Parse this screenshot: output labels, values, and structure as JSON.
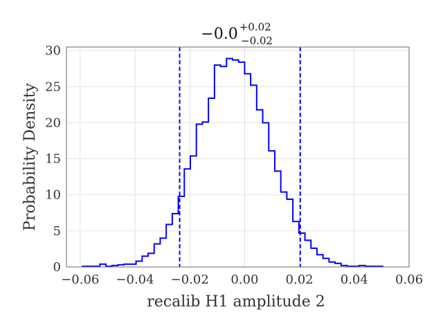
{
  "chart_data": {
    "type": "histogram",
    "title": {
      "main": "−0.0",
      "superscript": "+0.02",
      "subscript": "−0.02"
    },
    "xlabel": "recalib H1 amplitude 2",
    "ylabel": "Probability Density",
    "xlim": [
      -0.065,
      0.06
    ],
    "ylim": [
      0,
      30.5
    ],
    "xticks": [
      -0.06,
      -0.04,
      -0.02,
      0.0,
      0.02,
      0.04,
      0.06
    ],
    "xtick_labels": [
      "−0.06",
      "−0.04",
      "−0.02",
      "0.00",
      "0.02",
      "0.04",
      "0.06"
    ],
    "yticks": [
      0,
      5,
      10,
      15,
      20,
      25,
      30
    ],
    "ytick_labels": [
      "0",
      "5",
      "10",
      "15",
      "20",
      "25",
      "30"
    ],
    "grid": true,
    "series": [
      {
        "name": "recalib H1 amplitude 2",
        "color": "#0000ff",
        "bin_start": -0.0594,
        "bin_width": 0.0022,
        "values": [
          0.1,
          0.1,
          0.1,
          0.4,
          0.1,
          0.2,
          0.3,
          0.4,
          0.4,
          0.8,
          1.5,
          1.9,
          3.2,
          4.0,
          5.9,
          7.4,
          9.8,
          13.6,
          15.4,
          19.8,
          20.1,
          23.4,
          28.0,
          27.8,
          28.9,
          28.7,
          28.4,
          26.8,
          25.2,
          21.8,
          20.0,
          16.1,
          13.3,
          10.4,
          9.4,
          6.3,
          4.7,
          3.7,
          2.6,
          1.7,
          1.2,
          0.7,
          0.5,
          0.2,
          0.1,
          0.1,
          0.2,
          0.1,
          0.1,
          0.1
        ]
      }
    ],
    "annotations": {
      "vlines": [
        -0.0237,
        0.0203
      ],
      "vline_color": "#0000ff",
      "vline_style": "dashed"
    }
  }
}
